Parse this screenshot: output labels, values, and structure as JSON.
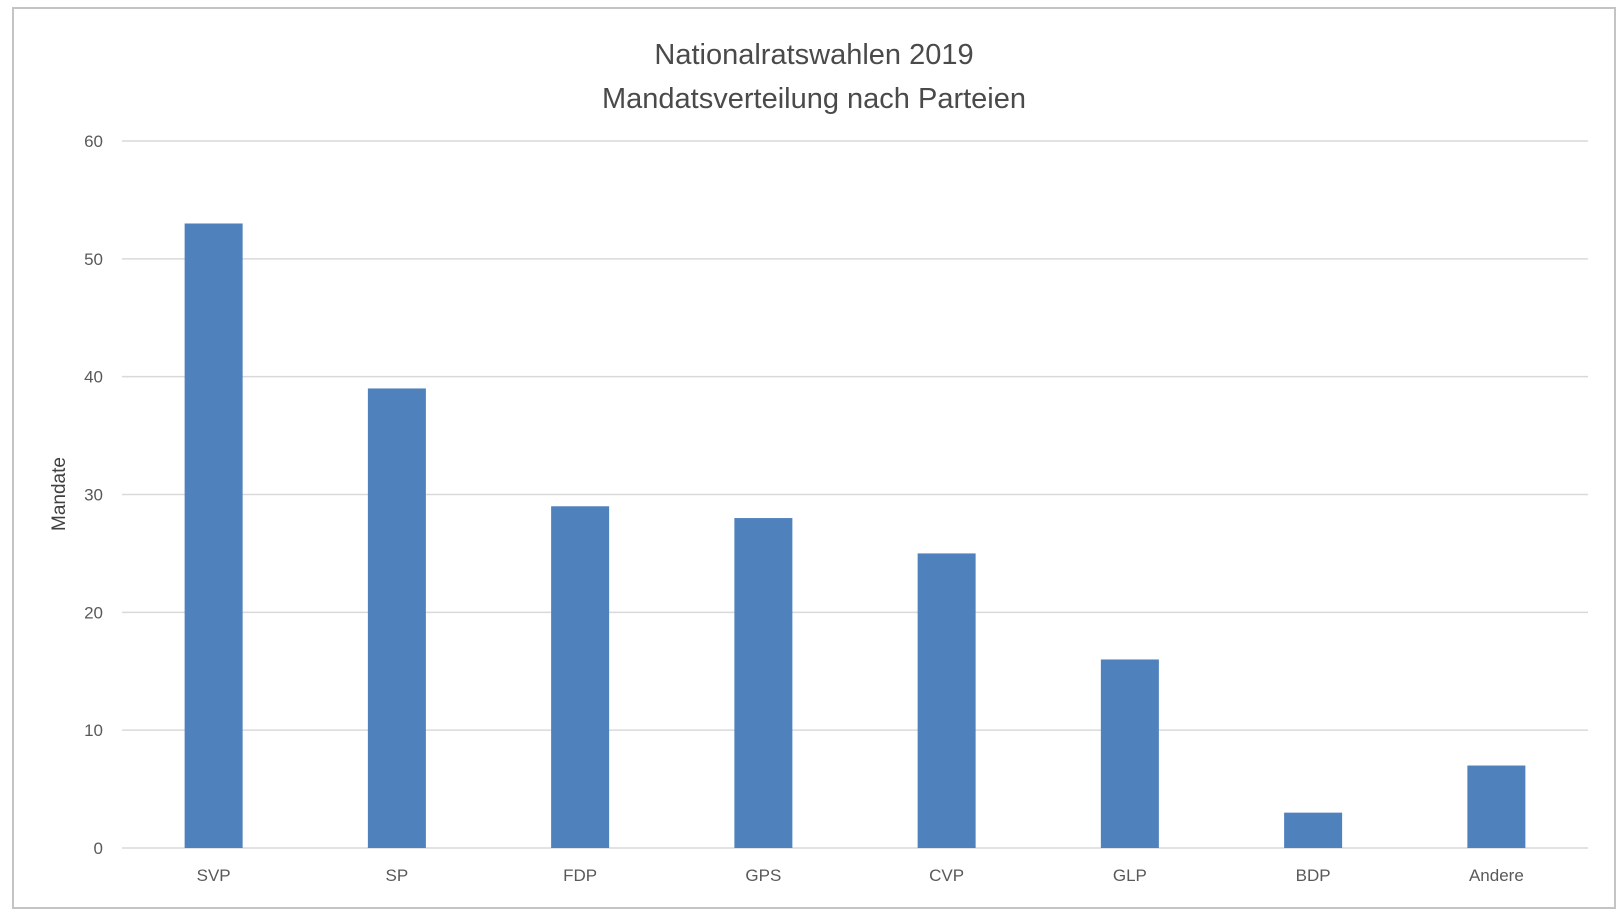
{
  "chart_data": {
    "type": "bar",
    "title": "Nationalratswahlen 2019",
    "subtitle": "Mandatsverteilung nach Parteien",
    "xlabel": "",
    "ylabel": "Mandate",
    "categories": [
      "SVP",
      "SP",
      "FDP",
      "GPS",
      "CVP",
      "GLP",
      "BDP",
      "Andere"
    ],
    "values": [
      53,
      39,
      29,
      28,
      25,
      16,
      3,
      7
    ],
    "ylim": [
      0,
      60
    ],
    "yticks": [
      0,
      10,
      20,
      30,
      40,
      50,
      60
    ],
    "grid": true,
    "legend": "none",
    "colors": {
      "bar": "#4f81bd",
      "grid": "#d9d9d9",
      "frame": "#c4c4c4"
    }
  }
}
